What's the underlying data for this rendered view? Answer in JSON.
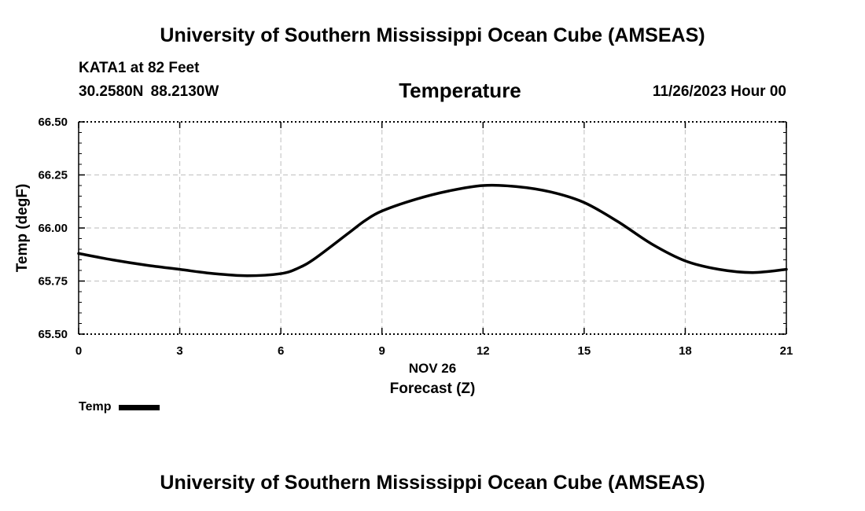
{
  "header": {
    "title": "University of Southern Mississippi Ocean Cube (AMSEAS)",
    "station": "KATA1 at 82 Feet",
    "location": "30.2580N 88.2130W",
    "plot_title": "Temperature",
    "date": "11/26/2023 Hour 00"
  },
  "footer": {
    "title": "University of Southern Mississippi Ocean Cube (AMSEAS)"
  },
  "legend": {
    "label": "Temp"
  },
  "colors": {
    "line": "#000000",
    "grid": "#c8c8c8"
  },
  "chart_data": {
    "type": "line",
    "title": "Temperature",
    "xlabel": "Forecast (Z)",
    "xlabel_date": "NOV 26",
    "ylabel": "Temp (degF)",
    "xlim": [
      0,
      21
    ],
    "ylim": [
      65.5,
      66.5
    ],
    "xticks": [
      0,
      3,
      6,
      9,
      12,
      15,
      18,
      21
    ],
    "yticks": [
      65.5,
      65.75,
      66.0,
      66.25,
      66.5
    ],
    "ytick_labels": [
      "65.50",
      "65.75",
      "66.00",
      "66.25",
      "66.50"
    ],
    "grid": true,
    "series": [
      {
        "name": "Temp",
        "x": [
          0,
          1,
          2,
          3,
          4,
          5,
          6,
          6.5,
          7,
          8,
          8.5,
          9,
          10,
          11,
          12,
          13,
          14,
          15,
          16,
          17,
          18,
          19,
          20,
          21
        ],
        "values": [
          65.88,
          65.85,
          65.825,
          65.805,
          65.785,
          65.775,
          65.785,
          65.81,
          65.855,
          65.975,
          66.035,
          66.08,
          66.135,
          66.175,
          66.2,
          66.195,
          66.17,
          66.12,
          66.03,
          65.925,
          65.845,
          65.805,
          65.79,
          65.805
        ]
      }
    ]
  }
}
